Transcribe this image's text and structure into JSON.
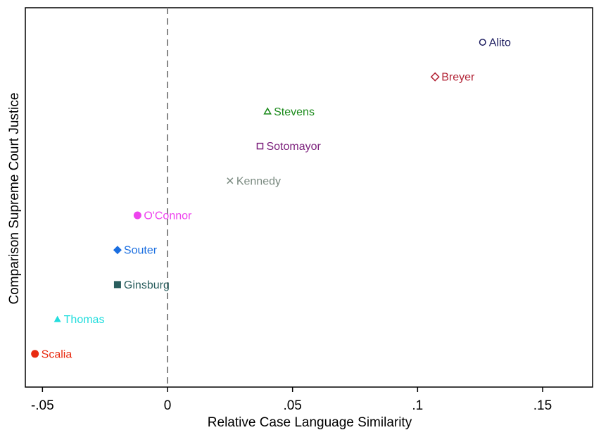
{
  "chart_data": {
    "type": "scatter",
    "title": "",
    "xlabel": "Relative Case Language Similarity",
    "ylabel": "Comparison Supreme Court Justice",
    "xlim": [
      -0.057,
      0.17
    ],
    "xticks": [
      -0.05,
      0,
      0.05,
      0.1,
      0.15
    ],
    "xtick_labels": [
      "-.05",
      "0",
      ".05",
      ".1",
      ".15"
    ],
    "grid": false,
    "reference_line": {
      "x": 0,
      "style": "dashed"
    },
    "points": [
      {
        "label": "Alito",
        "x": 0.126,
        "rank": 1,
        "marker": "circle-open",
        "color": "#1a1a5e"
      },
      {
        "label": "Breyer",
        "x": 0.107,
        "rank": 2,
        "marker": "diamond-open",
        "color": "#b22234"
      },
      {
        "label": "Stevens",
        "x": 0.04,
        "rank": 3,
        "marker": "triangle-open",
        "color": "#1a8a1a"
      },
      {
        "label": "Sotomayor",
        "x": 0.037,
        "rank": 4,
        "marker": "square-open",
        "color": "#7b1f7b"
      },
      {
        "label": "Kennedy",
        "x": 0.025,
        "rank": 5,
        "marker": "x",
        "color": "#7a8a80"
      },
      {
        "label": "O'Connor",
        "x": -0.012,
        "rank": 6,
        "marker": "circle-filled",
        "color": "#ee44ee"
      },
      {
        "label": "Souter",
        "x": -0.02,
        "rank": 7,
        "marker": "diamond-filled",
        "color": "#1a6ee0"
      },
      {
        "label": "Ginsburg",
        "x": -0.02,
        "rank": 8,
        "marker": "square-filled",
        "color": "#2a5e5e"
      },
      {
        "label": "Thomas",
        "x": -0.044,
        "rank": 9,
        "marker": "triangle-filled",
        "color": "#22dddd"
      },
      {
        "label": "Scalia",
        "x": -0.053,
        "rank": 10,
        "marker": "circle-filled",
        "color": "#e82a10"
      }
    ]
  }
}
